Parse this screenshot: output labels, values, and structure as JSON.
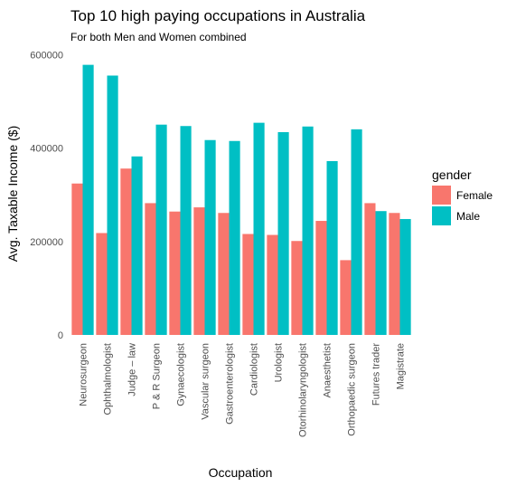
{
  "chart_data": {
    "type": "bar",
    "title": "Top 10 high paying occupations in Australia",
    "subtitle": "For both Men and Women combined",
    "xlabel": "Occupation",
    "ylabel": "Avg. Taxable Income ($)",
    "ylim": [
      0,
      600000
    ],
    "yticks": [
      {
        "value": 0,
        "label": "0"
      },
      {
        "value": 200000,
        "label": "200000"
      },
      {
        "value": 400000,
        "label": "400000"
      },
      {
        "value": 600000,
        "label": "600000"
      }
    ],
    "grid": false,
    "legend_position": "right",
    "legend_title": "gender",
    "categories": [
      "Neurosurgeon",
      "Ophthalmologist",
      "Judge – law",
      "P & R Surgeon",
      "Gynaecologist",
      "Vascular surgeon",
      "Gastroenterologist",
      "Cardiologist",
      "Urologist",
      "Otorhinolaryngologist",
      "Anaesthetist",
      "Orthopaedic surgeon",
      "Futures trader",
      "Magistrate"
    ],
    "series": [
      {
        "name": "Female",
        "color": "#F8766D",
        "values": [
          324000,
          218000,
          356000,
          282000,
          264000,
          273000,
          261000,
          216000,
          214000,
          201000,
          244000,
          160000,
          282000,
          261000
        ]
      },
      {
        "name": "Male",
        "color": "#00BFC4",
        "values": [
          578000,
          555000,
          382000,
          450000,
          447000,
          417000,
          415000,
          454000,
          434000,
          446000,
          372000,
          440000,
          265000,
          248000
        ]
      }
    ]
  }
}
